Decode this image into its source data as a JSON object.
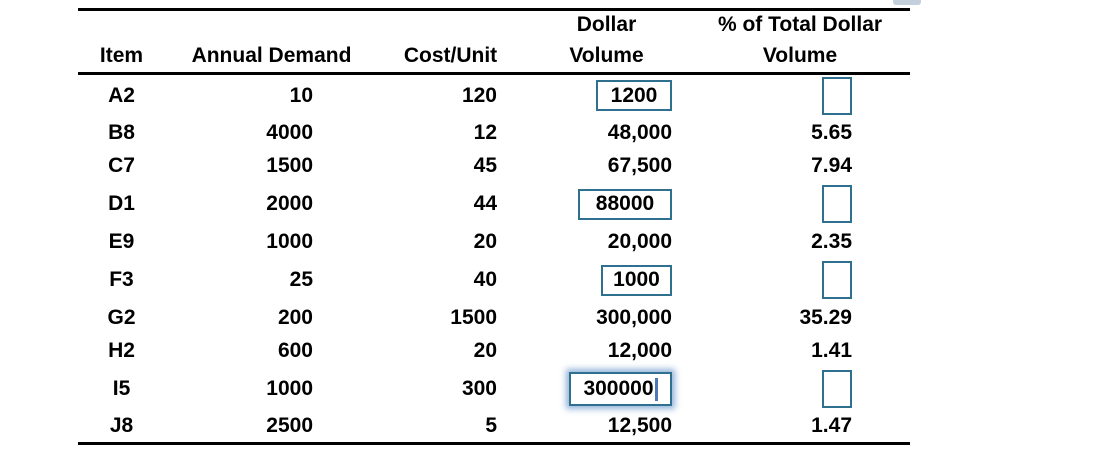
{
  "table": {
    "headers": {
      "item": "Item",
      "annual_demand": "Annual Demand",
      "cost_unit": "Cost/Unit",
      "dollar_volume_line1": "Dollar",
      "dollar_volume_line2": "Volume",
      "pct_total_line1": "% of Total Dollar",
      "pct_total_line2": "Volume"
    },
    "rows": [
      {
        "item": "A2",
        "annual_demand": "10",
        "cost_unit": "120",
        "dollar_volume": "1200",
        "dollar_volume_is_input": true,
        "dollar_volume_focused": false,
        "pct_of_total": "",
        "pct_is_input": true
      },
      {
        "item": "B8",
        "annual_demand": "4000",
        "cost_unit": "12",
        "dollar_volume": "48,000",
        "dollar_volume_is_input": false,
        "dollar_volume_focused": false,
        "pct_of_total": "5.65",
        "pct_is_input": false
      },
      {
        "item": "C7",
        "annual_demand": "1500",
        "cost_unit": "45",
        "dollar_volume": "67,500",
        "dollar_volume_is_input": false,
        "dollar_volume_focused": false,
        "pct_of_total": "7.94",
        "pct_is_input": false
      },
      {
        "item": "D1",
        "annual_demand": "2000",
        "cost_unit": "44",
        "dollar_volume": "88000",
        "dollar_volume_is_input": true,
        "dollar_volume_focused": false,
        "pct_of_total": "",
        "pct_is_input": true
      },
      {
        "item": "E9",
        "annual_demand": "1000",
        "cost_unit": "20",
        "dollar_volume": "20,000",
        "dollar_volume_is_input": false,
        "dollar_volume_focused": false,
        "pct_of_total": "2.35",
        "pct_is_input": false
      },
      {
        "item": "F3",
        "annual_demand": "25",
        "cost_unit": "40",
        "dollar_volume": "1000",
        "dollar_volume_is_input": true,
        "dollar_volume_focused": false,
        "pct_of_total": "",
        "pct_is_input": true
      },
      {
        "item": "G2",
        "annual_demand": "200",
        "cost_unit": "1500",
        "dollar_volume": "300,000",
        "dollar_volume_is_input": false,
        "dollar_volume_focused": false,
        "pct_of_total": "35.29",
        "pct_is_input": false
      },
      {
        "item": "H2",
        "annual_demand": "600",
        "cost_unit": "20",
        "dollar_volume": "12,000",
        "dollar_volume_is_input": false,
        "dollar_volume_focused": false,
        "pct_of_total": "1.41",
        "pct_is_input": false
      },
      {
        "item": "I5",
        "annual_demand": "1000",
        "cost_unit": "300",
        "dollar_volume": "300000",
        "dollar_volume_is_input": true,
        "dollar_volume_focused": true,
        "pct_of_total": "",
        "pct_is_input": true
      },
      {
        "item": "J8",
        "annual_demand": "2500",
        "cost_unit": "5",
        "dollar_volume": "12,500",
        "dollar_volume_is_input": false,
        "dollar_volume_focused": false,
        "pct_of_total": "1.47",
        "pct_is_input": false
      }
    ]
  },
  "colors": {
    "input_border": "#30708f",
    "focus_glow": "#88acd6",
    "caret": "#4a78b8",
    "rule": "#000000",
    "text": "#000000",
    "background": "#ffffff",
    "partial_element_top": "#c3cfdb"
  }
}
